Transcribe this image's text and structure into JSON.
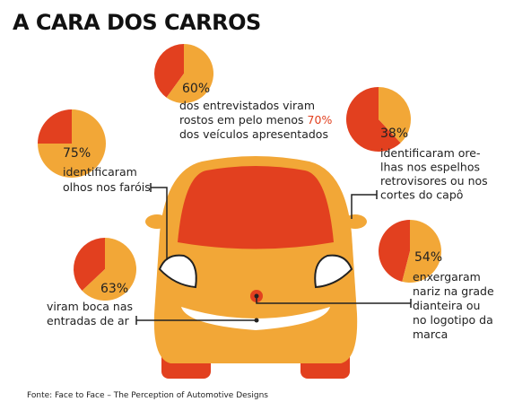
{
  "title": "A CARA DOS CARROS",
  "source": "Fonte: Face to Face – The Perception of Automotive Designs",
  "chart_data": [
    {
      "type": "pie",
      "values": [
        60
      ],
      "value_labels": [
        "60%"
      ],
      "colors": [
        "#f2a737",
        "#e2401f"
      ],
      "caption": [
        [
          "dos entrevistados viram"
        ],
        [
          "rostos em pelo menos ",
          "70%"
        ],
        [
          "dos veículos apresentados"
        ]
      ]
    },
    {
      "type": "pie",
      "values": [
        75
      ],
      "value_labels": [
        "75%"
      ],
      "colors": [
        "#f2a737",
        "#e2401f"
      ],
      "caption": [
        [
          "identificaram"
        ],
        [
          "olhos nos faróis"
        ]
      ]
    },
    {
      "type": "pie",
      "values": [
        38
      ],
      "value_labels": [
        "38%"
      ],
      "colors": [
        "#f2a737",
        "#e2401f"
      ],
      "caption": [
        [
          "identificaram ore-"
        ],
        [
          "lhas nos espelhos"
        ],
        [
          "retrovisores ou nos"
        ],
        [
          "cortes do capô"
        ]
      ]
    },
    {
      "type": "pie",
      "values": [
        54
      ],
      "value_labels": [
        "54%"
      ],
      "colors": [
        "#f2a737",
        "#e2401f"
      ],
      "caption": [
        [
          "enxergaram"
        ],
        [
          "nariz na grade"
        ],
        [
          "dianteira ou"
        ],
        [
          "no logotipo da"
        ],
        [
          "marca"
        ]
      ]
    },
    {
      "type": "pie",
      "values": [
        63
      ],
      "value_labels": [
        "63%"
      ],
      "colors": [
        "#f2a737",
        "#e2401f"
      ],
      "caption": [
        [
          "viram boca nas"
        ],
        [
          "entradas de ar"
        ]
      ]
    }
  ]
}
